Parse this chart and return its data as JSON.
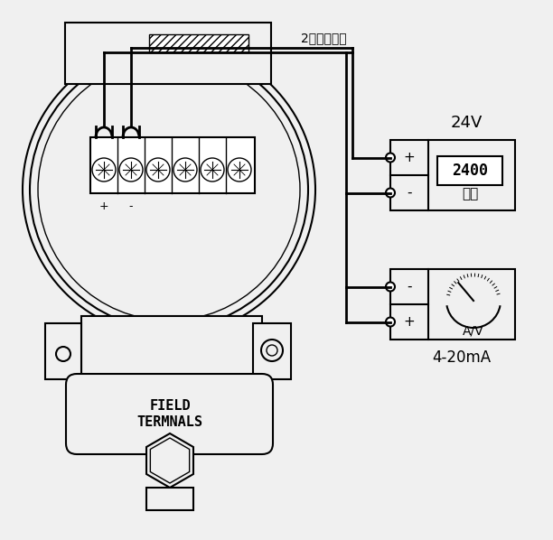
{
  "bg_color": "#f0f0f0",
  "line_color": "#000000",
  "title": "2线不分极性",
  "label_24v": "24V",
  "label_power": "电源",
  "label_display": "2400",
  "label_ammeter": "A/V",
  "label_current": "4-20mA",
  "label_field1": "FIELD",
  "label_field2": "TERMNALS",
  "label_plus": "+",
  "label_minus": "-"
}
